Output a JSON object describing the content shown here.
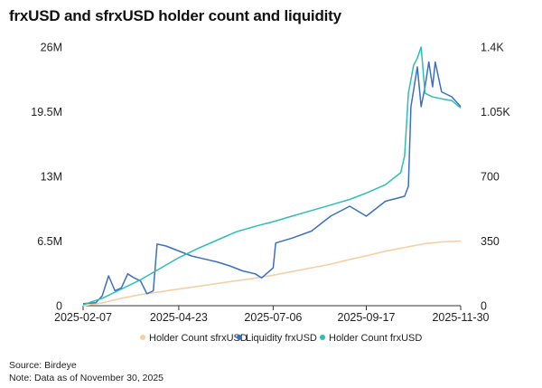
{
  "chart_data": {
    "type": "line",
    "title": "frxUSD and sfrxUSD holder count and liquidity",
    "x_ticks": [
      "2025-02-07",
      "2025-04-23",
      "2025-07-06",
      "2025-09-17",
      "2025-11-30"
    ],
    "y_left": {
      "ticks": [
        "0",
        "6.5M",
        "13M",
        "19.5M",
        "26M"
      ],
      "range": [
        0,
        26000000
      ]
    },
    "y_right": {
      "ticks": [
        "0",
        "350",
        "700",
        "1.05K",
        "1.4K"
      ],
      "range": [
        0,
        1400
      ]
    },
    "legend_position": "bottom",
    "grid": false,
    "series": [
      {
        "name": "Holder Count sfrxUSD",
        "axis": "right",
        "color": "#f5cfa6",
        "points": [
          [
            "2025-02-07",
            0
          ],
          [
            "2025-02-22",
            15
          ],
          [
            "2025-03-09",
            40
          ],
          [
            "2025-03-24",
            60
          ],
          [
            "2025-04-08",
            75
          ],
          [
            "2025-04-23",
            90
          ],
          [
            "2025-05-08",
            105
          ],
          [
            "2025-05-23",
            120
          ],
          [
            "2025-06-07",
            135
          ],
          [
            "2025-06-22",
            150
          ],
          [
            "2025-07-06",
            165
          ],
          [
            "2025-07-21",
            185
          ],
          [
            "2025-08-05",
            205
          ],
          [
            "2025-08-20",
            225
          ],
          [
            "2025-09-04",
            250
          ],
          [
            "2025-09-17",
            270
          ],
          [
            "2025-10-02",
            295
          ],
          [
            "2025-10-17",
            315
          ],
          [
            "2025-11-01",
            335
          ],
          [
            "2025-11-15",
            345
          ],
          [
            "2025-11-30",
            350
          ]
        ]
      },
      {
        "name": "Liquidity frxUSD",
        "axis": "left",
        "color": "#3b6fc4",
        "points": [
          [
            "2025-02-07",
            200000
          ],
          [
            "2025-02-17",
            300000
          ],
          [
            "2025-02-22",
            1000000
          ],
          [
            "2025-02-27",
            3000000
          ],
          [
            "2025-03-04",
            1500000
          ],
          [
            "2025-03-09",
            1800000
          ],
          [
            "2025-03-14",
            3200000
          ],
          [
            "2025-03-19",
            2800000
          ],
          [
            "2025-03-24",
            2500000
          ],
          [
            "2025-03-29",
            1200000
          ],
          [
            "2025-04-03",
            1500000
          ],
          [
            "2025-04-06",
            6200000
          ],
          [
            "2025-04-13",
            6000000
          ],
          [
            "2025-04-23",
            5500000
          ],
          [
            "2025-05-03",
            5000000
          ],
          [
            "2025-05-13",
            4700000
          ],
          [
            "2025-05-23",
            4400000
          ],
          [
            "2025-06-02",
            4000000
          ],
          [
            "2025-06-12",
            3500000
          ],
          [
            "2025-06-22",
            3200000
          ],
          [
            "2025-06-27",
            2800000
          ],
          [
            "2025-07-06",
            3800000
          ],
          [
            "2025-07-08",
            6300000
          ],
          [
            "2025-07-21",
            6800000
          ],
          [
            "2025-08-05",
            7500000
          ],
          [
            "2025-08-20",
            9000000
          ],
          [
            "2025-09-04",
            10000000
          ],
          [
            "2025-09-17",
            9000000
          ],
          [
            "2025-10-02",
            10500000
          ],
          [
            "2025-10-17",
            11000000
          ],
          [
            "2025-10-20",
            12000000
          ],
          [
            "2025-10-22",
            20000000
          ],
          [
            "2025-10-27",
            24000000
          ],
          [
            "2025-10-30",
            20000000
          ],
          [
            "2025-11-02",
            22000000
          ],
          [
            "2025-11-05",
            24500000
          ],
          [
            "2025-11-08",
            22000000
          ],
          [
            "2025-11-10",
            24500000
          ],
          [
            "2025-11-15",
            21500000
          ],
          [
            "2025-11-23",
            21000000
          ],
          [
            "2025-11-30",
            20000000
          ]
        ]
      },
      {
        "name": "Holder Count frxUSD",
        "axis": "right",
        "color": "#2bbfb3",
        "points": [
          [
            "2025-02-07",
            5
          ],
          [
            "2025-02-22",
            40
          ],
          [
            "2025-03-09",
            90
          ],
          [
            "2025-03-24",
            140
          ],
          [
            "2025-04-08",
            200
          ],
          [
            "2025-04-23",
            260
          ],
          [
            "2025-05-08",
            310
          ],
          [
            "2025-05-23",
            355
          ],
          [
            "2025-06-07",
            400
          ],
          [
            "2025-06-22",
            430
          ],
          [
            "2025-07-06",
            455
          ],
          [
            "2025-07-21",
            485
          ],
          [
            "2025-08-05",
            515
          ],
          [
            "2025-08-20",
            545
          ],
          [
            "2025-09-04",
            575
          ],
          [
            "2025-09-17",
            610
          ],
          [
            "2025-10-02",
            655
          ],
          [
            "2025-10-14",
            720
          ],
          [
            "2025-10-17",
            810
          ],
          [
            "2025-10-20",
            1150
          ],
          [
            "2025-10-24",
            1300
          ],
          [
            "2025-10-27",
            1340
          ],
          [
            "2025-10-30",
            1400
          ],
          [
            "2025-11-02",
            1150
          ],
          [
            "2025-11-08",
            1130
          ],
          [
            "2025-11-15",
            1120
          ],
          [
            "2025-11-23",
            1110
          ],
          [
            "2025-11-30",
            1070
          ]
        ]
      }
    ]
  },
  "footer": {
    "source": "Source: Birdeye",
    "note": "Note: Data as of November 30, 2025"
  }
}
